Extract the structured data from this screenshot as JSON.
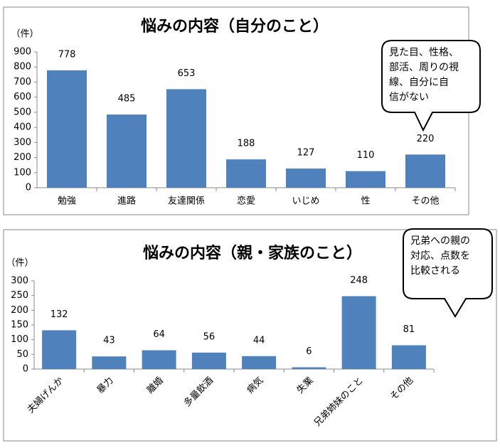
{
  "chart_data": [
    {
      "type": "bar",
      "title": "悩みの内容（自分のこと）",
      "ylabel": "（件）",
      "categories": [
        "勉強",
        "進路",
        "友達関係",
        "恋愛",
        "いじめ",
        "性",
        "その他"
      ],
      "values": [
        778,
        485,
        653,
        188,
        127,
        110,
        220
      ],
      "color": "#4f81bd",
      "ylim": [
        0,
        900
      ],
      "yticks": [
        0,
        100,
        200,
        300,
        400,
        500,
        600,
        700,
        800,
        900
      ],
      "grid": false,
      "xtick_rotation": 0,
      "annotation": [
        "見た目、性格、",
        "部活、周りの視",
        "線、自分に自",
        "信がない"
      ]
    },
    {
      "type": "bar",
      "title": "悩みの内容（親・家族のこと）",
      "ylabel": "（件）",
      "categories": [
        "夫婦げんか",
        "暴力",
        "離婚",
        "多量飲酒",
        "病気",
        "失業",
        "兄弟姉妹のこと",
        "その他"
      ],
      "values": [
        132,
        43,
        64,
        56,
        44,
        6,
        248,
        81
      ],
      "color": "#4f81bd",
      "ylim": [
        0,
        300
      ],
      "yticks": [
        0,
        50,
        100,
        150,
        200,
        250,
        300
      ],
      "grid": false,
      "xtick_rotation": -45,
      "annotation": [
        "兄弟への親の",
        "対応、点数を",
        "比較される"
      ]
    }
  ]
}
